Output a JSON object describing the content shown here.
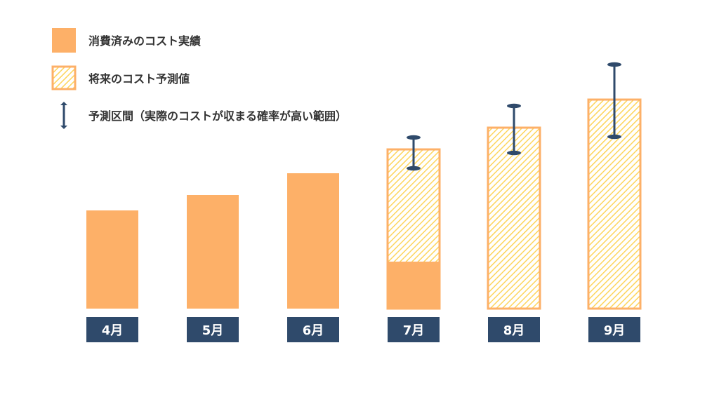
{
  "colors": {
    "actual": "#fdb068",
    "forecast_hatch": "#fdd55c",
    "forecast_border": "#fdb068",
    "interval": "#2f4a6b",
    "month_label_bg": "#2f4a6b",
    "month_label_text": "#ffffff",
    "legend_text": "#333333"
  },
  "legend": {
    "actual": "消費済みのコスト実績",
    "forecast": "将来のコスト予測値",
    "interval": "予測区間（実際のコストが収まる確率が高い範囲）"
  },
  "chart_data": {
    "type": "bar",
    "categories": [
      "4月",
      "5月",
      "6月",
      "7月",
      "8月",
      "9月"
    ],
    "series": [
      {
        "name": "消費済みのコスト実績",
        "values": [
          140,
          162,
          193,
          67,
          0,
          0
        ]
      },
      {
        "name": "将来のコスト予測値",
        "values": [
          0,
          0,
          0,
          227,
          258,
          298
        ]
      }
    ],
    "prediction_interval": [
      null,
      null,
      null,
      [
        200,
        244
      ],
      [
        222,
        289
      ],
      [
        245,
        348
      ]
    ],
    "ylim": [
      0,
      360
    ],
    "grid": false,
    "legend_position": "top-left"
  }
}
